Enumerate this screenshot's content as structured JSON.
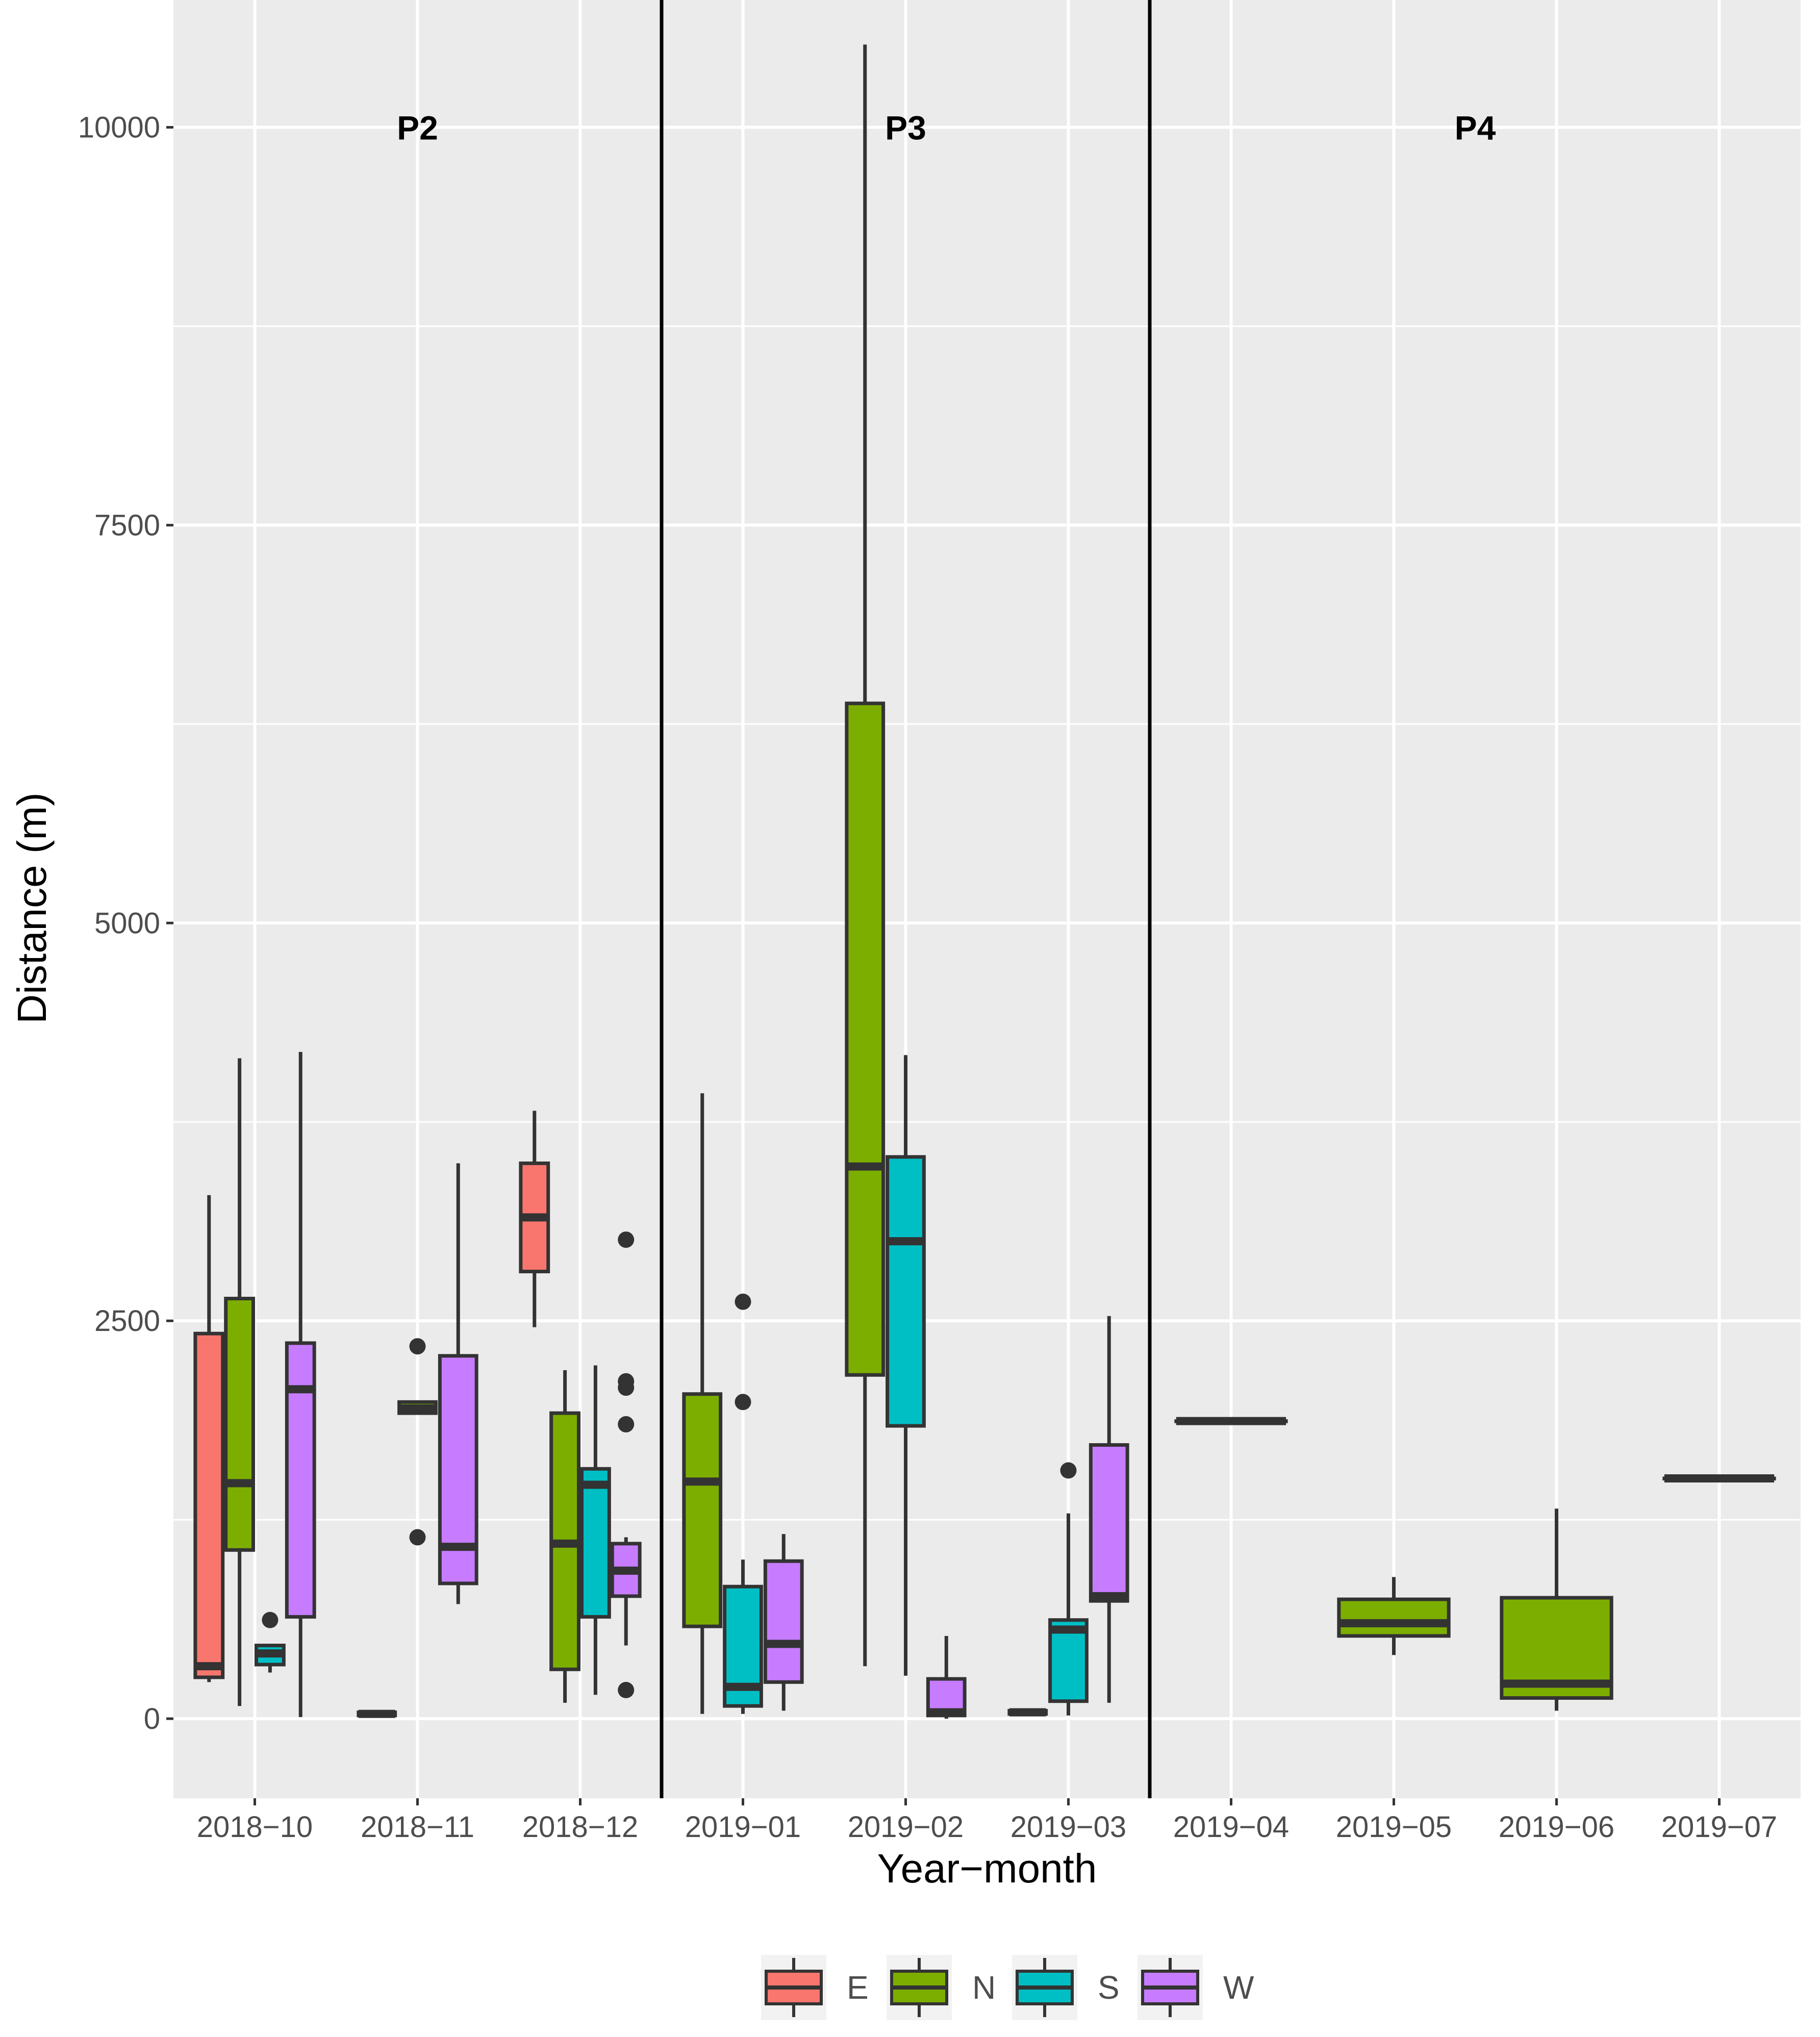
{
  "chart_data": {
    "type": "boxplot",
    "title": "",
    "xlabel": "Year−month",
    "ylabel": "Distance (m)",
    "ylim": [
      -500,
      10800
    ],
    "yticks": [
      {
        "value": 0,
        "label": "0"
      },
      {
        "value": 2500,
        "label": "2500"
      },
      {
        "value": 5000,
        "label": "5000"
      },
      {
        "value": 7500,
        "label": "7500"
      },
      {
        "value": 10000,
        "label": "10000"
      }
    ],
    "grid": true,
    "categories": [
      "2018−10",
      "2018−11",
      "2018−12",
      "2019−01",
      "2019−02",
      "2019−03",
      "2019−04",
      "2019−05",
      "2019−06",
      "2019−07"
    ],
    "period_dividers": [
      2.5,
      5.5
    ],
    "periods": [
      {
        "label": "P2",
        "center": 1
      },
      {
        "label": "P3",
        "center": 4
      },
      {
        "label": "P4",
        "center": 7.5
      }
    ],
    "period_label_y": 10000,
    "legend": {
      "position": "bottom",
      "entries": [
        {
          "key": "E",
          "label": "E",
          "color": "#F8766D"
        },
        {
          "key": "N",
          "label": "N",
          "color": "#7CAE00"
        },
        {
          "key": "S",
          "label": "S",
          "color": "#00BFC4"
        },
        {
          "key": "W",
          "label": "W",
          "color": "#C77CFF"
        }
      ]
    },
    "boxes": [
      {
        "cat": 0,
        "group": "E",
        "slot": 0,
        "nslots": 4,
        "min": 230,
        "q1": 260,
        "median": 330,
        "q3": 2420,
        "max": 3290,
        "outliers": []
      },
      {
        "cat": 0,
        "group": "N",
        "slot": 1,
        "nslots": 4,
        "min": 80,
        "q1": 1060,
        "median": 1480,
        "q3": 2640,
        "max": 4150,
        "outliers": []
      },
      {
        "cat": 0,
        "group": "S",
        "slot": 2,
        "nslots": 4,
        "min": 290,
        "q1": 340,
        "median": 410,
        "q3": 460,
        "max": 460,
        "outliers": [
          620
        ]
      },
      {
        "cat": 0,
        "group": "W",
        "slot": 3,
        "nslots": 4,
        "min": 10,
        "q1": 640,
        "median": 2070,
        "q3": 2360,
        "max": 4190,
        "outliers": []
      },
      {
        "cat": 1,
        "group": "E",
        "slot": 0,
        "nslots": 3,
        "min": 20,
        "q1": 20,
        "median": 30,
        "q3": 40,
        "max": 40,
        "outliers": []
      },
      {
        "cat": 1,
        "group": "N",
        "slot": 1,
        "nslots": 3,
        "min": 1920,
        "q1": 1920,
        "median": 1950,
        "q3": 1990,
        "max": 1990,
        "outliers": [
          2340,
          1140
        ]
      },
      {
        "cat": 1,
        "group": "W",
        "slot": 2,
        "nslots": 3,
        "min": 720,
        "q1": 850,
        "median": 1080,
        "q3": 2280,
        "max": 3490,
        "outliers": []
      },
      {
        "cat": 2,
        "group": "E",
        "slot": 0,
        "nslots": 4,
        "min": 2460,
        "q1": 2810,
        "median": 3150,
        "q3": 3490,
        "max": 3820,
        "outliers": []
      },
      {
        "cat": 2,
        "group": "N",
        "slot": 1,
        "nslots": 4,
        "min": 100,
        "q1": 310,
        "median": 1100,
        "q3": 1920,
        "max": 2190,
        "outliers": []
      },
      {
        "cat": 2,
        "group": "S",
        "slot": 2,
        "nslots": 4,
        "min": 150,
        "q1": 640,
        "median": 1470,
        "q3": 1570,
        "max": 2220,
        "outliers": []
      },
      {
        "cat": 2,
        "group": "W",
        "slot": 3,
        "nslots": 4,
        "min": 460,
        "q1": 770,
        "median": 930,
        "q3": 1100,
        "max": 1140,
        "outliers": [
          3010,
          2120,
          2080,
          1850,
          180
        ]
      },
      {
        "cat": 3,
        "group": "N",
        "slot": 0,
        "nslots": 3,
        "min": 30,
        "q1": 580,
        "median": 1490,
        "q3": 2040,
        "max": 3930,
        "outliers": []
      },
      {
        "cat": 3,
        "group": "S",
        "slot": 1,
        "nslots": 3,
        "min": 30,
        "q1": 80,
        "median": 200,
        "q3": 830,
        "max": 1000,
        "outliers": [
          2620,
          1990
        ]
      },
      {
        "cat": 3,
        "group": "W",
        "slot": 2,
        "nslots": 3,
        "min": 50,
        "q1": 230,
        "median": 470,
        "q3": 990,
        "max": 1160,
        "outliers": []
      },
      {
        "cat": 4,
        "group": "N",
        "slot": 0,
        "nslots": 3,
        "min": 330,
        "q1": 2160,
        "median": 3470,
        "q3": 6380,
        "max": 10520,
        "outliers": []
      },
      {
        "cat": 4,
        "group": "S",
        "slot": 1,
        "nslots": 3,
        "min": 270,
        "q1": 1840,
        "median": 3000,
        "q3": 3530,
        "max": 4170,
        "outliers": []
      },
      {
        "cat": 4,
        "group": "W",
        "slot": 2,
        "nslots": 3,
        "min": 0,
        "q1": 20,
        "median": 40,
        "q3": 250,
        "max": 520,
        "outliers": []
      },
      {
        "cat": 5,
        "group": "E",
        "slot": 0,
        "nslots": 3,
        "min": 30,
        "q1": 30,
        "median": 40,
        "q3": 50,
        "max": 50,
        "outliers": []
      },
      {
        "cat": 5,
        "group": "S",
        "slot": 1,
        "nslots": 3,
        "min": 20,
        "q1": 110,
        "median": 560,
        "q3": 620,
        "max": 1290,
        "outliers": [
          1560
        ]
      },
      {
        "cat": 5,
        "group": "W",
        "slot": 2,
        "nslots": 3,
        "min": 100,
        "q1": 740,
        "median": 770,
        "q3": 1720,
        "max": 2530,
        "outliers": []
      },
      {
        "cat": 6,
        "group": "N",
        "slot": 0,
        "nslots": 1,
        "min": 1870,
        "q1": 1870,
        "median": 1870,
        "q3": 1870,
        "max": 1870,
        "outliers": []
      },
      {
        "cat": 7,
        "group": "N",
        "slot": 0,
        "nslots": 1,
        "min": 400,
        "q1": 520,
        "median": 600,
        "q3": 750,
        "max": 890,
        "outliers": []
      },
      {
        "cat": 8,
        "group": "N",
        "slot": 0,
        "nslots": 1,
        "min": 50,
        "q1": 130,
        "median": 220,
        "q3": 760,
        "max": 1320,
        "outliers": []
      },
      {
        "cat": 9,
        "group": "N",
        "slot": 0,
        "nslots": 1,
        "min": 1510,
        "q1": 1510,
        "median": 1510,
        "q3": 1510,
        "max": 1510,
        "outliers": []
      }
    ]
  }
}
